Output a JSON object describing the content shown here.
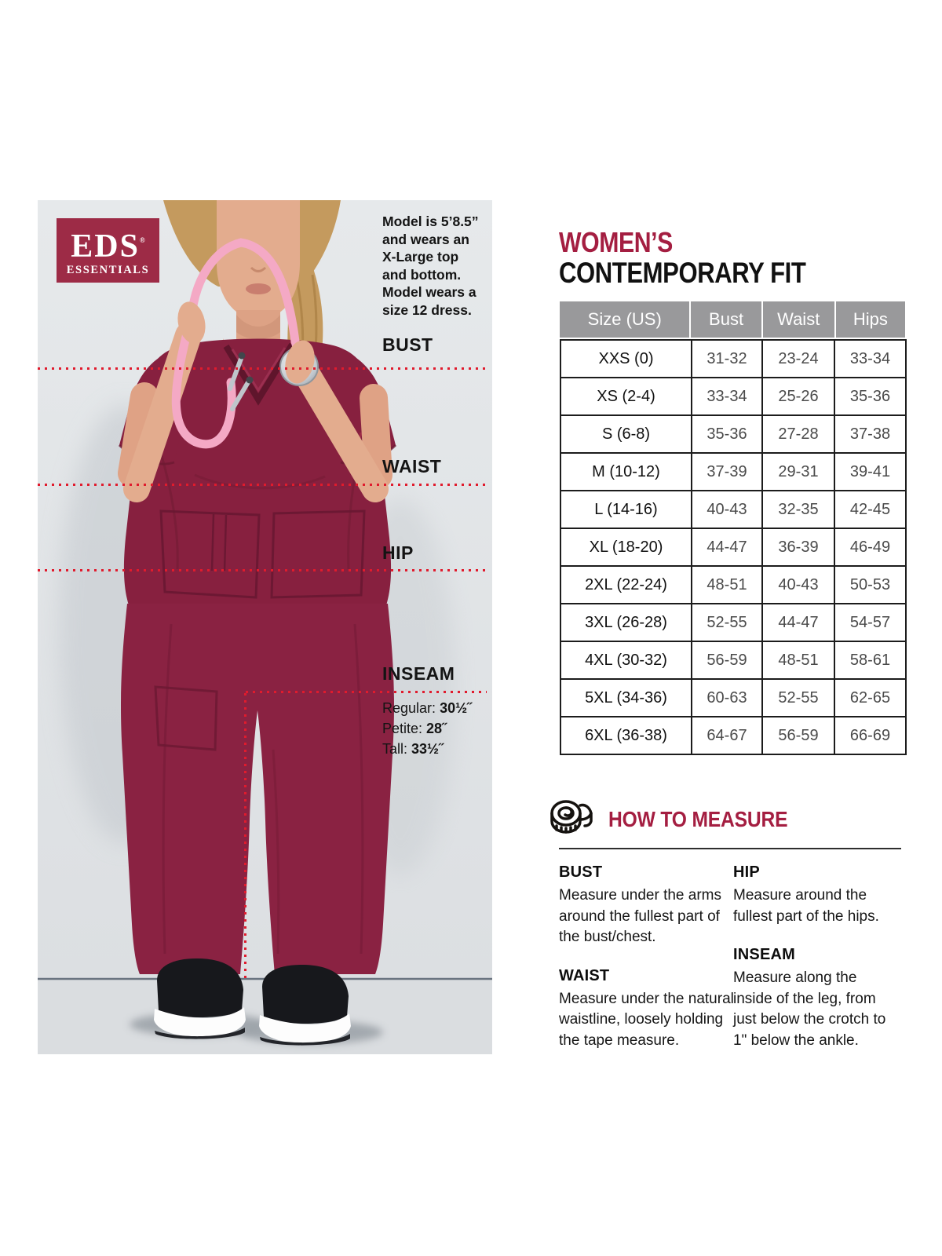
{
  "brand": {
    "logo_line1": "EDS",
    "logo_registered": "®",
    "logo_line2": "ESSENTIALS",
    "logo_bg_color": "#9d2b46"
  },
  "colors": {
    "accent_crimson": "#a41e41",
    "dotted_line_red": "#e01b2d",
    "table_header_gray": "#99999b",
    "scrub_wine": "#87203f",
    "photo_background": "#e2e5e7"
  },
  "photo": {
    "model_note_lines": [
      "Model is 5’8.5”",
      "and wears an",
      "X-Large top",
      "and bottom.",
      "Model wears a",
      "size 12 dress."
    ],
    "labels": {
      "bust": "BUST",
      "waist": "WAIST",
      "hip": "HIP",
      "inseam": "INSEAM"
    },
    "inseam_details": [
      {
        "label": "Regular:",
        "value": "30½˝"
      },
      {
        "label": "Petite:",
        "value": "28˝"
      },
      {
        "label": "Tall:",
        "value": "33½˝"
      }
    ]
  },
  "size_chart": {
    "title_line1": "WOMEN’S",
    "title_line2": "CONTEMPORARY FIT",
    "columns": [
      "Size (US)",
      "Bust",
      "Waist",
      "Hips"
    ],
    "rows": [
      [
        "XXS (0)",
        "31-32",
        "23-24",
        "33-34"
      ],
      [
        "XS (2-4)",
        "33-34",
        "25-26",
        "35-36"
      ],
      [
        "S (6-8)",
        "35-36",
        "27-28",
        "37-38"
      ],
      [
        "M (10-12)",
        "37-39",
        "29-31",
        "39-41"
      ],
      [
        "L (14-16)",
        "40-43",
        "32-35",
        "42-45"
      ],
      [
        "XL (18-20)",
        "44-47",
        "36-39",
        "46-49"
      ],
      [
        "2XL (22-24)",
        "48-51",
        "40-43",
        "50-53"
      ],
      [
        "3XL (26-28)",
        "52-55",
        "44-47",
        "54-57"
      ],
      [
        "4XL (30-32)",
        "56-59",
        "48-51",
        "58-61"
      ],
      [
        "5XL (34-36)",
        "60-63",
        "52-55",
        "62-65"
      ],
      [
        "6XL (36-38)",
        "64-67",
        "56-59",
        "66-69"
      ]
    ]
  },
  "how_to_measure": {
    "title": "HOW TO MEASURE",
    "sections": [
      {
        "heading": "BUST",
        "text": "Measure under the arms around the fullest part of the bust/chest."
      },
      {
        "heading": "WAIST",
        "text": "Measure under the natural waistline, loosely holding the tape measure."
      },
      {
        "heading": "HIP",
        "text": "Measure around the fullest part of the hips."
      },
      {
        "heading": "INSEAM",
        "text": "Measure along the inside of the leg, from just below the crotch to 1\" below the ankle."
      }
    ]
  }
}
